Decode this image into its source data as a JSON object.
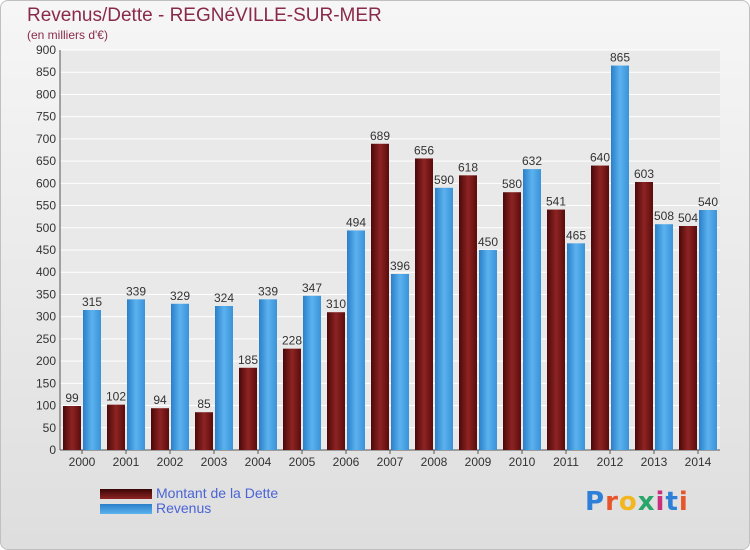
{
  "header": {
    "title": "Revenus/Dette - REGNéVILLE-SUR-MER",
    "subtitle": "(en milliers d'€)"
  },
  "logo": {
    "text": "Proxiti",
    "colors": [
      "#2e7fd8",
      "#e8552a",
      "#f2b61e",
      "#2aa66a",
      "#c92f7e",
      "#2e7fd8",
      "#e8552a"
    ]
  },
  "chart_data": {
    "type": "bar",
    "title": "Revenus/Dette - REGNéVILLE-SUR-MER",
    "ylabel": "(en milliers d'€)",
    "xlabel": "",
    "ylim": [
      0,
      900
    ],
    "yticks": [
      0,
      50,
      100,
      150,
      200,
      250,
      300,
      350,
      400,
      450,
      500,
      550,
      600,
      650,
      700,
      750,
      800,
      850,
      900
    ],
    "grid": true,
    "legend_position": "bottom-left",
    "categories": [
      "2000",
      "2001",
      "2002",
      "2003",
      "2004",
      "2005",
      "2006",
      "2007",
      "2008",
      "2009",
      "2010",
      "2011",
      "2012",
      "2013",
      "2014"
    ],
    "series": [
      {
        "name": "Montant de la Dette",
        "color": "#7a1818",
        "values": [
          99,
          102,
          94,
          85,
          185,
          228,
          310,
          689,
          656,
          618,
          580,
          541,
          640,
          603,
          504
        ]
      },
      {
        "name": "Revenus",
        "color": "#3d9be0",
        "values": [
          315,
          339,
          329,
          324,
          339,
          347,
          494,
          396,
          590,
          450,
          632,
          465,
          865,
          508,
          540
        ]
      }
    ]
  }
}
